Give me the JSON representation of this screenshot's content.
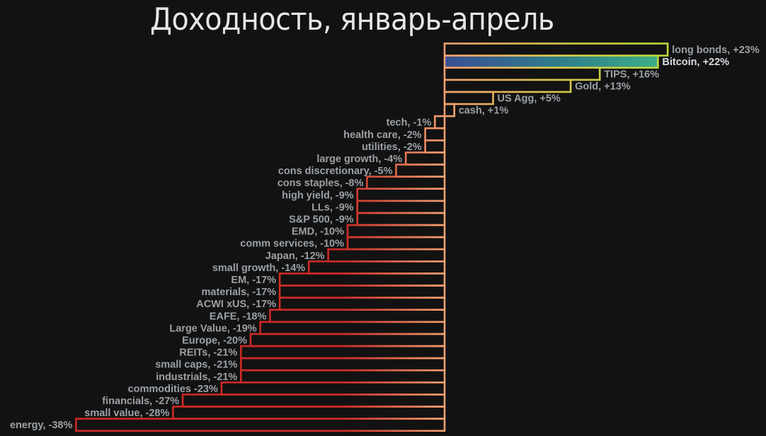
{
  "chart_data": {
    "type": "bar",
    "orientation": "horizontal",
    "title": "Доходность, январь-апрель",
    "xlabel": "",
    "ylabel": "",
    "xlim": [
      -38,
      23
    ],
    "grid": false,
    "legend": "none",
    "highlight": "Bitcoin",
    "series": [
      {
        "values": [
          23,
          22,
          16,
          13,
          5,
          1,
          -1,
          -2,
          -2,
          -4,
          -5,
          -8,
          -9,
          -9,
          -9,
          -10,
          -10,
          -12,
          -14,
          -17,
          -17,
          -17,
          -18,
          -19,
          -20,
          -21,
          -21,
          -21,
          -23,
          -27,
          -28,
          -38
        ]
      }
    ],
    "categories": [
      "long bonds",
      "Bitcoin",
      "TIPS",
      "Gold",
      "US Agg",
      "cash",
      "tech",
      "health care",
      "utilities",
      "large growth",
      "cons discretionary",
      "cons staples",
      "high yield",
      "LLs",
      "S&P 500",
      "EMD",
      "comm services",
      "Japan",
      "small growth",
      "EM",
      "materials",
      "ACWI xUS",
      "EAFE",
      "Large Value",
      "Europe",
      "REITs",
      "small caps",
      "industrials",
      "commodities",
      "financials",
      "small value",
      "energy"
    ],
    "labels": [
      "long bonds, +23%",
      "Bitcoin, +22%",
      "TIPS, +16%",
      "Gold, +13%",
      "US Agg, +5%",
      "cash, +1%",
      "tech, -1%",
      "health care, -2%",
      "utilities, -2%",
      "large growth, -4%",
      "cons discretionary, -5%",
      "cons staples, -8%",
      "high yield, -9%",
      "LLs, -9%",
      "S&P 500, -9%",
      "EMD, -10%",
      "comm services, -10%",
      "Japan, -12%",
      "small growth, -14%",
      "EM, -17%",
      "materials, -17%",
      "ACWI xUS, -17%",
      "EAFE, -18%",
      "Large Value, -19%",
      "Europe, -20%",
      "REITs, -21%",
      "small caps, -21%",
      "industrials, -21%",
      "commodities -23%",
      "financials, -27%",
      "small value, -28%",
      "energy, -38%"
    ],
    "colors": {
      "background": "#121212",
      "title": "#e6e6e6",
      "label": "#9aa0a6",
      "label_highlight": "#d8dde3",
      "negative_edge": "#cc2a25",
      "zero_edge": "#f2a070",
      "positive_edge": "#c6d93a",
      "bitcoin_fill_start": "#3a4f93",
      "bitcoin_fill_end": "#3cae86"
    }
  }
}
